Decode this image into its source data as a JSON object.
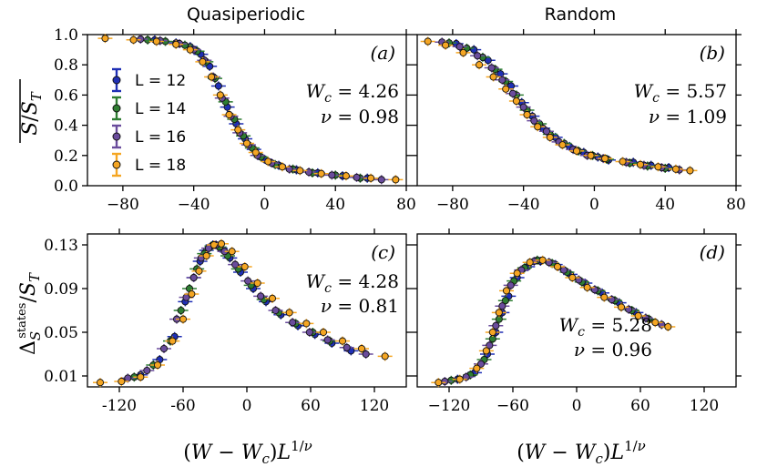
{
  "figure": {
    "col_titles": [
      "Quasiperiodic",
      "Random"
    ],
    "x_label": "(W − W_c)L^{1/ν}"
  },
  "legend": [
    {
      "label": "L = 12",
      "color": "#1f2fb5"
    },
    {
      "label": "L = 14",
      "color": "#2e7d32"
    },
    {
      "label": "L = 16",
      "color": "#6a4c9c"
    },
    {
      "label": "L = 18",
      "color": "#f5a623"
    }
  ],
  "chart_data": [
    {
      "id": "a",
      "type": "scatter",
      "tag": "(a)",
      "title": "Quasiperiodic",
      "ylabel": "S/S_T (averaged)",
      "xlim": [
        -100,
        80
      ],
      "ylim": [
        0.0,
        1.0
      ],
      "xticks": [
        -80,
        -40,
        0,
        40,
        80
      ],
      "xtick_labels": [
        "−80",
        "−40",
        "0",
        "40",
        "80"
      ],
      "yticks": [
        0.0,
        0.2,
        0.4,
        0.6,
        0.8,
        1.0
      ],
      "ytick_labels": [
        "0.0",
        "0.2",
        "0.4",
        "0.6",
        "0.8",
        "1.0"
      ],
      "annotation": {
        "Wc": "W_c = 4.26",
        "nu": "ν = 0.98"
      },
      "series": [
        {
          "name": "L = 12",
          "x": [
            -62,
            -50,
            -42,
            -36,
            -31,
            -26,
            -21,
            -16,
            -11,
            -6,
            0,
            8,
            18,
            30,
            44,
            58
          ],
          "y": [
            0.965,
            0.945,
            0.92,
            0.87,
            0.79,
            0.66,
            0.52,
            0.41,
            0.31,
            0.24,
            0.175,
            0.135,
            0.105,
            0.085,
            0.065,
            0.05
          ]
        },
        {
          "name": "L = 14",
          "x": [
            -66,
            -56,
            -45,
            -38,
            -33,
            -28,
            -22,
            -17,
            -12,
            -7,
            -2,
            6,
            16,
            27,
            40,
            54
          ],
          "y": [
            0.965,
            0.955,
            0.93,
            0.89,
            0.82,
            0.71,
            0.555,
            0.44,
            0.33,
            0.25,
            0.19,
            0.14,
            0.11,
            0.085,
            0.07,
            0.05
          ]
        },
        {
          "name": "L = 16",
          "x": [
            -70,
            -59,
            -48,
            -40,
            -34,
            -29,
            -24,
            -19,
            -14,
            -9,
            -4,
            4,
            14,
            25,
            38,
            52,
            66
          ],
          "y": [
            0.97,
            0.96,
            0.94,
            0.9,
            0.83,
            0.72,
            0.58,
            0.46,
            0.35,
            0.27,
            0.2,
            0.15,
            0.11,
            0.09,
            0.07,
            0.055,
            0.04
          ]
        },
        {
          "name": "L = 18",
          "x": [
            -90,
            -74,
            -61,
            -50,
            -42,
            -35,
            -30,
            -25,
            -20,
            -15,
            -10,
            -5,
            2,
            10,
            20,
            32,
            46,
            60,
            74
          ],
          "y": [
            0.975,
            0.965,
            0.955,
            0.935,
            0.9,
            0.82,
            0.72,
            0.6,
            0.47,
            0.37,
            0.28,
            0.22,
            0.16,
            0.125,
            0.1,
            0.08,
            0.065,
            0.05,
            0.04
          ]
        }
      ]
    },
    {
      "id": "b",
      "type": "scatter",
      "tag": "(b)",
      "title": "Random",
      "xlim": [
        -100,
        80
      ],
      "ylim": [
        0.0,
        1.0
      ],
      "xticks": [
        -80,
        -40,
        0,
        40,
        80
      ],
      "xtick_labels": [
        "−80",
        "−40",
        "0",
        "40",
        "80"
      ],
      "yticks": [
        0.0,
        0.2,
        0.4,
        0.6,
        0.8,
        1.0
      ],
      "annotation": {
        "Wc": "W_c = 5.57",
        "nu": "ν = 1.09"
      },
      "series": [
        {
          "name": "L = 12",
          "x": [
            -78,
            -68,
            -60,
            -53,
            -47,
            -41,
            -35,
            -29,
            -22,
            -14,
            -6,
            2,
            8,
            22,
            32,
            42
          ],
          "y": [
            0.94,
            0.9,
            0.83,
            0.74,
            0.66,
            0.55,
            0.46,
            0.38,
            0.32,
            0.26,
            0.22,
            0.19,
            0.17,
            0.155,
            0.135,
            0.12
          ]
        },
        {
          "name": "L = 14",
          "x": [
            -82,
            -72,
            -63,
            -56,
            -50,
            -44,
            -38,
            -31,
            -25,
            -17,
            -9,
            -1,
            7,
            20,
            30,
            40
          ],
          "y": [
            0.945,
            0.91,
            0.85,
            0.77,
            0.69,
            0.6,
            0.5,
            0.41,
            0.34,
            0.28,
            0.23,
            0.2,
            0.175,
            0.15,
            0.13,
            0.115
          ]
        },
        {
          "name": "L = 16",
          "x": [
            -86,
            -76,
            -66,
            -58,
            -52,
            -46,
            -40,
            -34,
            -27,
            -20,
            -12,
            -4,
            5,
            18,
            28,
            38,
            48
          ],
          "y": [
            0.95,
            0.92,
            0.86,
            0.78,
            0.7,
            0.61,
            0.52,
            0.43,
            0.36,
            0.29,
            0.24,
            0.2,
            0.18,
            0.155,
            0.135,
            0.12,
            0.105
          ]
        },
        {
          "name": "L = 18",
          "x": [
            -94,
            -84,
            -74,
            -65,
            -57,
            -50,
            -44,
            -38,
            -32,
            -25,
            -18,
            -10,
            -2,
            6,
            16,
            26,
            36,
            46,
            54
          ],
          "y": [
            0.955,
            0.93,
            0.88,
            0.8,
            0.72,
            0.64,
            0.56,
            0.47,
            0.39,
            0.32,
            0.27,
            0.23,
            0.2,
            0.18,
            0.16,
            0.14,
            0.125,
            0.11,
            0.1
          ]
        }
      ]
    },
    {
      "id": "c",
      "type": "scatter",
      "tag": "(c)",
      "ylabel": "Δ_S^states / S_T",
      "xlim": [
        -150,
        150
      ],
      "ylim": [
        0.0,
        0.14
      ],
      "xticks": [
        -120,
        -60,
        0,
        60,
        120
      ],
      "xtick_labels": [
        "-120",
        "-60",
        "0",
        "60",
        "120"
      ],
      "yticks": [
        0.01,
        0.05,
        0.09,
        0.13
      ],
      "ytick_labels": [
        "0.01",
        "0.05",
        "0.09",
        "0.13"
      ],
      "annotation": {
        "Wc": "W_c = 4.28",
        "nu": "ν = 0.81"
      },
      "series": [
        {
          "name": "L = 12",
          "x": [
            -100,
            -82,
            -68,
            -58,
            -50,
            -44,
            -38,
            -32,
            -25,
            -16,
            -6,
            6,
            18,
            32,
            48,
            64,
            80,
            98
          ],
          "y": [
            0.011,
            0.025,
            0.046,
            0.078,
            0.1,
            0.115,
            0.125,
            0.13,
            0.127,
            0.118,
            0.105,
            0.09,
            0.078,
            0.066,
            0.056,
            0.048,
            0.04,
            0.033
          ]
        },
        {
          "name": "L = 14",
          "x": [
            -106,
            -88,
            -72,
            -62,
            -54,
            -47,
            -40,
            -33,
            -26,
            -18,
            -8,
            4,
            16,
            30,
            46,
            62,
            78
          ],
          "y": [
            0.009,
            0.02,
            0.042,
            0.07,
            0.09,
            0.108,
            0.122,
            0.129,
            0.128,
            0.12,
            0.108,
            0.093,
            0.08,
            0.068,
            0.058,
            0.05,
            0.042
          ]
        },
        {
          "name": "L = 16",
          "x": [
            -112,
            -94,
            -78,
            -66,
            -57,
            -50,
            -43,
            -36,
            -29,
            -21,
            -11,
            1,
            13,
            27,
            43,
            59,
            76,
            94,
            112
          ],
          "y": [
            0.008,
            0.015,
            0.035,
            0.062,
            0.082,
            0.1,
            0.118,
            0.127,
            0.13,
            0.124,
            0.112,
            0.097,
            0.083,
            0.07,
            0.059,
            0.05,
            0.043,
            0.036,
            0.03
          ]
        },
        {
          "name": "L = 18",
          "x": [
            -138,
            -118,
            -100,
            -84,
            -70,
            -60,
            -52,
            -45,
            -38,
            -31,
            -24,
            -14,
            -2,
            10,
            24,
            40,
            56,
            72,
            90,
            108,
            130
          ],
          "y": [
            0.004,
            0.005,
            0.009,
            0.02,
            0.042,
            0.062,
            0.085,
            0.106,
            0.12,
            0.13,
            0.131,
            0.124,
            0.11,
            0.095,
            0.081,
            0.068,
            0.058,
            0.05,
            0.042,
            0.035,
            0.028
          ]
        }
      ]
    },
    {
      "id": "d",
      "type": "scatter",
      "tag": "(d)",
      "xlim": [
        -150,
        150
      ],
      "ylim": [
        0.0,
        0.14
      ],
      "xticks": [
        -120,
        -60,
        0,
        60,
        120
      ],
      "xtick_labels": [
        "−120",
        "−60",
        "0",
        "60",
        "120"
      ],
      "yticks": [
        0.01,
        0.05,
        0.09,
        0.13
      ],
      "annotation": {
        "Wc": "W_c = 5.28",
        "nu": "ν = 0.96"
      },
      "series": [
        {
          "name": "L = 12",
          "x": [
            -112,
            -96,
            -84,
            -76,
            -70,
            -64,
            -56,
            -46,
            -34,
            -20,
            -6,
            8,
            24,
            40,
            56
          ],
          "y": [
            0.007,
            0.013,
            0.03,
            0.05,
            0.068,
            0.083,
            0.1,
            0.11,
            0.115,
            0.112,
            0.103,
            0.095,
            0.086,
            0.077,
            0.068
          ]
        },
        {
          "name": "L = 14",
          "x": [
            -118,
            -100,
            -87,
            -79,
            -73,
            -67,
            -59,
            -49,
            -37,
            -23,
            -9,
            5,
            20,
            36,
            52,
            68
          ],
          "y": [
            0.006,
            0.011,
            0.025,
            0.044,
            0.062,
            0.079,
            0.097,
            0.109,
            0.116,
            0.113,
            0.105,
            0.096,
            0.088,
            0.079,
            0.07,
            0.062
          ]
        },
        {
          "name": "L = 16",
          "x": [
            -124,
            -104,
            -90,
            -82,
            -76,
            -70,
            -62,
            -52,
            -40,
            -26,
            -12,
            2,
            17,
            33,
            49,
            65,
            80
          ],
          "y": [
            0.005,
            0.009,
            0.021,
            0.038,
            0.056,
            0.074,
            0.093,
            0.107,
            0.115,
            0.114,
            0.107,
            0.098,
            0.089,
            0.08,
            0.071,
            0.063,
            0.057
          ]
        },
        {
          "name": "L = 18",
          "x": [
            -130,
            -110,
            -94,
            -85,
            -79,
            -73,
            -66,
            -56,
            -44,
            -32,
            -18,
            -4,
            10,
            26,
            42,
            58,
            74,
            86
          ],
          "y": [
            0.004,
            0.007,
            0.017,
            0.033,
            0.05,
            0.068,
            0.088,
            0.104,
            0.114,
            0.116,
            0.11,
            0.1,
            0.091,
            0.082,
            0.073,
            0.065,
            0.059,
            0.055
          ]
        }
      ]
    }
  ]
}
